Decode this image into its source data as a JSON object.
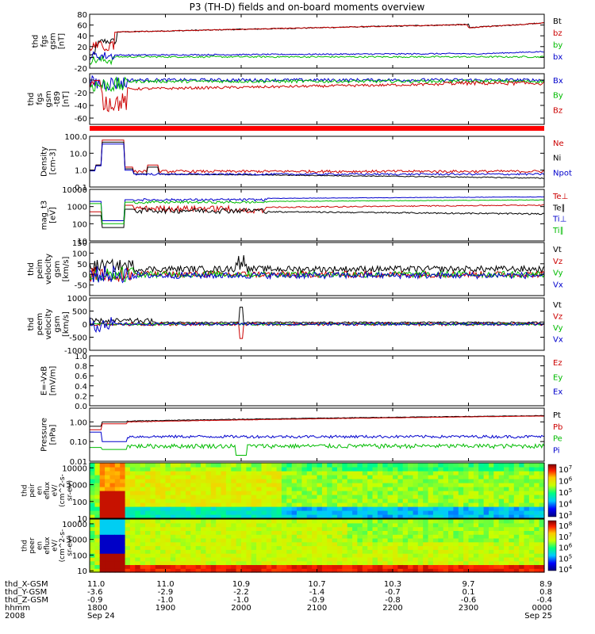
{
  "chart_data": {
    "type": "line",
    "title": "P3 (TH-D) fields and on-board moments overview",
    "panels": [
      {
        "id": "fgs_gsm",
        "ylabel": [
          "thd",
          "fgs",
          "gsm",
          "[nT]"
        ],
        "ylim": [
          -20,
          80
        ],
        "yticks": [
          "80",
          "60",
          "40",
          "20",
          "0",
          "-20"
        ],
        "yvals": [
          80,
          60,
          40,
          20,
          0,
          -20
        ],
        "log": false,
        "series": [
          {
            "name": "Bt",
            "color": "#000000",
            "shape": "bt"
          },
          {
            "name": "bz",
            "color": "#cc0000",
            "shape": "fgs_bz"
          },
          {
            "name": "by",
            "color": "#00bb00",
            "shape": "fgs_by"
          },
          {
            "name": "bx",
            "color": "#0000cc",
            "shape": "fgs_bx"
          }
        ],
        "legend": [
          {
            "text": "Bt",
            "color": "#000000"
          },
          {
            "text": "bz",
            "color": "#cc0000"
          },
          {
            "text": "by",
            "color": "#00bb00"
          },
          {
            "text": "bx",
            "color": "#0000cc"
          }
        ]
      },
      {
        "id": "fgs_gsm_t89",
        "ylabel": [
          "thd",
          "fgs",
          "gsm",
          "-t89",
          "[nT]"
        ],
        "ylim": [
          -70,
          10
        ],
        "yticks": [
          "0",
          "-20",
          "-40",
          "-60"
        ],
        "yvals": [
          0,
          -20,
          -40,
          -60
        ],
        "log": false,
        "series": [
          {
            "name": "Bx",
            "color": "#0000cc",
            "shape": "t89_x"
          },
          {
            "name": "By",
            "color": "#00bb00",
            "shape": "t89_y"
          },
          {
            "name": "Bz",
            "color": "#cc0000",
            "shape": "t89_z"
          }
        ],
        "legend": [
          {
            "text": "Bx",
            "color": "#0000cc"
          },
          {
            "text": "By",
            "color": "#00bb00"
          },
          {
            "text": "Bz",
            "color": "#cc0000"
          }
        ]
      },
      {
        "id": "density",
        "ylabel": [
          "Density",
          "[cm-3]"
        ],
        "ylim": [
          0.1,
          100
        ],
        "yticks": [
          "100.0",
          "10.0",
          "1.0",
          "0.1"
        ],
        "yvals": [
          100,
          10,
          1,
          0.1
        ],
        "log": true,
        "series": [
          {
            "name": "Ne",
            "color": "#cc0000",
            "shape": "ne"
          },
          {
            "name": "Ni",
            "color": "#000000",
            "shape": "ni"
          },
          {
            "name": "Npot",
            "color": "#0000cc",
            "shape": "npot"
          }
        ],
        "legend": [
          {
            "text": "Ne",
            "color": "#cc0000"
          },
          {
            "text": "Ni",
            "color": "#000000"
          },
          {
            "text": "Npot",
            "color": "#0000cc"
          }
        ]
      },
      {
        "id": "temperature",
        "ylabel": [
          "mag_t3",
          "[eV]"
        ],
        "ylim": [
          10,
          10000
        ],
        "yticks": [
          "10000",
          "1000",
          "100",
          "10"
        ],
        "yvals": [
          10000,
          1000,
          100,
          10
        ],
        "log": true,
        "series": [
          {
            "name": "Te⊥",
            "color": "#cc0000",
            "shape": "tep"
          },
          {
            "name": "Te∥",
            "color": "#000000",
            "shape": "tel"
          },
          {
            "name": "Ti⊥",
            "color": "#0000cc",
            "shape": "tip"
          },
          {
            "name": "Ti∥",
            "color": "#00bb00",
            "shape": "til"
          }
        ],
        "legend": [
          {
            "text": "Te⊥",
            "color": "#cc0000"
          },
          {
            "text": "Te∥",
            "color": "#000000"
          },
          {
            "text": "Ti⊥",
            "color": "#0000cc"
          },
          {
            "text": "Ti∥",
            "color": "#00bb00"
          }
        ]
      },
      {
        "id": "peim_vel",
        "ylabel": [
          "thd",
          "peim",
          "velocity",
          "gsm",
          "[km/s]"
        ],
        "ylim": [
          -100,
          150
        ],
        "yticks": [
          "150",
          "100",
          "50",
          "0",
          "-50"
        ],
        "yvals": [
          150,
          100,
          50,
          0,
          -50
        ],
        "log": false,
        "series": [
          {
            "name": "Vt",
            "color": "#000000",
            "shape": "vt"
          },
          {
            "name": "Vz",
            "color": "#cc0000",
            "shape": "vz"
          },
          {
            "name": "Vy",
            "color": "#00bb00",
            "shape": "vy"
          },
          {
            "name": "Vx",
            "color": "#0000cc",
            "shape": "vx"
          }
        ],
        "legend": [
          {
            "text": "Vt",
            "color": "#000000"
          },
          {
            "text": "Vz",
            "color": "#cc0000"
          },
          {
            "text": "Vy",
            "color": "#00bb00"
          },
          {
            "text": "Vx",
            "color": "#0000cc"
          }
        ]
      },
      {
        "id": "peem_vel",
        "ylabel": [
          "thd",
          "peem",
          "velocity",
          "gsm",
          "[km/s]"
        ],
        "ylim": [
          -1000,
          1000
        ],
        "yticks": [
          "1000",
          "500",
          "0",
          "-500",
          "-1000"
        ],
        "yvals": [
          1000,
          500,
          0,
          -500,
          -1000
        ],
        "log": false,
        "series": [
          {
            "name": "Vt",
            "color": "#000000",
            "shape": "evt"
          },
          {
            "name": "Vz",
            "color": "#cc0000",
            "shape": "evz"
          },
          {
            "name": "Vy",
            "color": "#00bb00",
            "shape": "evy"
          },
          {
            "name": "Vx",
            "color": "#0000cc",
            "shape": "evx"
          }
        ],
        "legend": [
          {
            "text": "Vt",
            "color": "#000000"
          },
          {
            "text": "Vz",
            "color": "#cc0000"
          },
          {
            "text": "Vy",
            "color": "#00bb00"
          },
          {
            "text": "Vx",
            "color": "#0000cc"
          }
        ]
      },
      {
        "id": "efield",
        "ylabel": [
          "E=-VxB",
          "[mV/m]"
        ],
        "ylim": [
          0,
          1
        ],
        "yticks": [
          "1.0",
          "0.8",
          "0.6",
          "0.4",
          "0.2",
          "0.0"
        ],
        "yvals": [
          1,
          0.8,
          0.6,
          0.4,
          0.2,
          0
        ],
        "log": false,
        "series": [],
        "legend": [
          {
            "text": "Ez",
            "color": "#cc0000"
          },
          {
            "text": "Ey",
            "color": "#00bb00"
          },
          {
            "text": "Ex",
            "color": "#0000cc"
          }
        ]
      },
      {
        "id": "pressure",
        "ylabel": [
          "Pressure",
          "[nPa]"
        ],
        "ylim": [
          0.01,
          5
        ],
        "yticks": [
          "1.00",
          "0.10",
          "0.01"
        ],
        "yvals": [
          1,
          0.1,
          0.01
        ],
        "log": true,
        "series": [
          {
            "name": "Pt",
            "color": "#000000",
            "shape": "pt"
          },
          {
            "name": "Pb",
            "color": "#cc0000",
            "shape": "pb"
          },
          {
            "name": "Pe",
            "color": "#00bb00",
            "shape": "pe"
          },
          {
            "name": "Pi",
            "color": "#0000cc",
            "shape": "pi"
          }
        ],
        "legend": [
          {
            "text": "Pt",
            "color": "#000000"
          },
          {
            "text": "Pb",
            "color": "#cc0000"
          },
          {
            "text": "Pe",
            "color": "#00bb00"
          },
          {
            "text": "Pi",
            "color": "#0000cc"
          }
        ]
      }
    ],
    "spectrograms": [
      {
        "id": "peir_en",
        "ylabel": [
          "thd",
          "peir",
          "en",
          "eflux",
          "eV/",
          "(cm^2-s-",
          "sr-eV)"
        ],
        "ylim": [
          10,
          20000
        ],
        "yticks": [
          "10000",
          "1000",
          "100",
          "10"
        ],
        "yvals": [
          10000,
          1000,
          100,
          10
        ],
        "log": true,
        "colorbar": {
          "ticks": [
            "10^7",
            "10^6",
            "10^5",
            "10^4",
            "10^3"
          ]
        }
      },
      {
        "id": "peer_en",
        "ylabel": [
          "thd",
          "peer",
          "en",
          "eflux",
          "eV/",
          "(cm^2-s-",
          "sr-eV)"
        ],
        "ylim": [
          8,
          20000
        ],
        "yticks": [
          "10000",
          "1000",
          "100",
          "10"
        ],
        "yvals": [
          10000,
          1000,
          100,
          10
        ],
        "log": true,
        "colorbar": {
          "ticks": [
            "10^8",
            "10^7",
            "10^6",
            "10^5",
            "10^4"
          ]
        }
      }
    ],
    "x_axis": {
      "row_labels": [
        "thd_X-GSM",
        "thd_Y-GSM",
        "thd_Z-GSM",
        "hhmm",
        "2008"
      ],
      "columns": [
        {
          "t": 0,
          "values": [
            "11.0",
            "-3.6",
            "-0.9",
            "1800",
            "Sep 24"
          ]
        },
        {
          "t": 60,
          "values": [
            "11.0",
            "-2.9",
            "-1.0",
            "1900",
            ""
          ]
        },
        {
          "t": 120,
          "values": [
            "10.9",
            "-2.2",
            "-1.0",
            "2000",
            ""
          ]
        },
        {
          "t": 180,
          "values": [
            "10.7",
            "-1.4",
            "-0.9",
            "2100",
            ""
          ]
        },
        {
          "t": 240,
          "values": [
            "10.3",
            "-0.7",
            "-0.8",
            "2200",
            ""
          ]
        },
        {
          "t": 300,
          "values": [
            "9.7",
            "0.1",
            "-0.6",
            "2300",
            ""
          ]
        },
        {
          "t": 360,
          "values": [
            "8.9",
            "0.8",
            "-0.4",
            "0000",
            "Sep 25"
          ]
        }
      ]
    }
  }
}
